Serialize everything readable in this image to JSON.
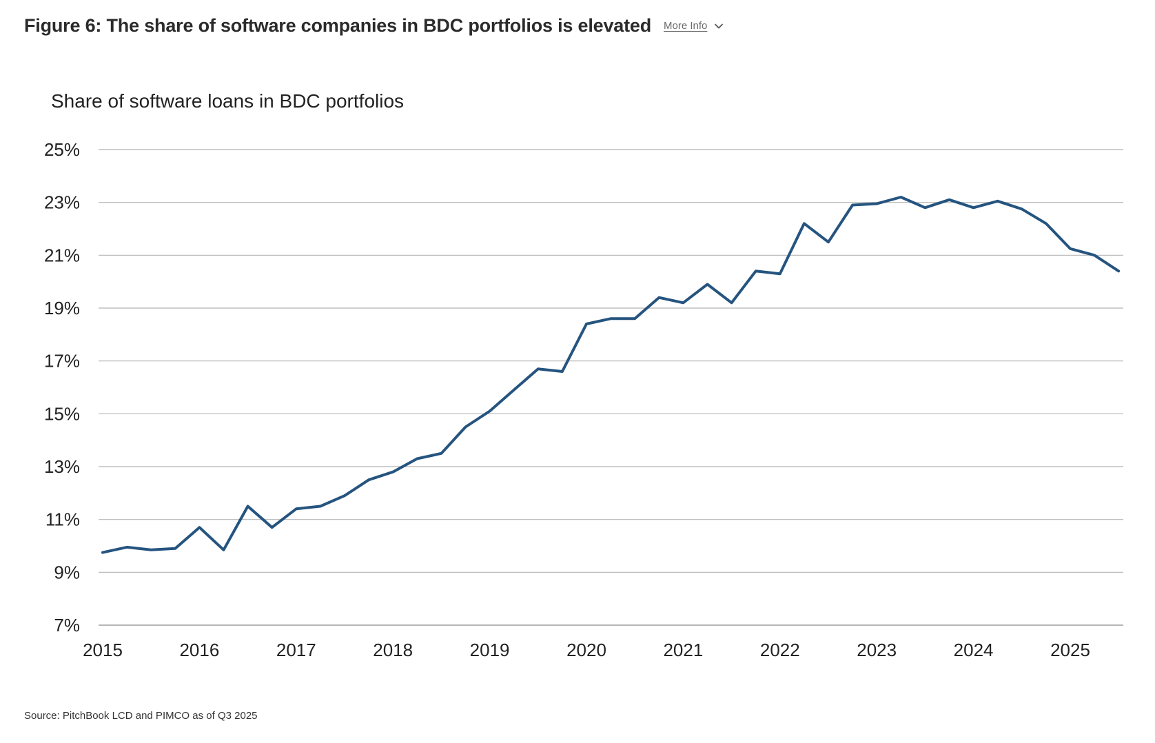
{
  "header": {
    "title": "Figure 6: The share of software companies in BDC portfolios is elevated",
    "more_info_label": "More Info",
    "more_info_icon": "chevron-down-icon"
  },
  "footer": {
    "source": "Source: PitchBook LCD and PIMCO as of Q3 2025"
  },
  "colors": {
    "line": "#25547f",
    "grid": "#b5b5b5",
    "text": "#222222"
  },
  "chart_data": {
    "type": "line",
    "title": "Share of software loans in BDC portfolios",
    "xlabel": "",
    "ylabel": "",
    "grid": true,
    "ylim": [
      7,
      25
    ],
    "yticks": [
      7,
      9,
      11,
      13,
      15,
      17,
      19,
      21,
      23,
      25
    ],
    "ytick_labels": [
      "7%",
      "9%",
      "11%",
      "13%",
      "15%",
      "17%",
      "19%",
      "21%",
      "23%",
      "25%"
    ],
    "xlim": [
      2015,
      2025.5
    ],
    "xticks": [
      2015,
      2016,
      2017,
      2018,
      2019,
      2020,
      2021,
      2022,
      2023,
      2024,
      2025
    ],
    "xtick_labels": [
      "2015",
      "2016",
      "2017",
      "2018",
      "2019",
      "2020",
      "2021",
      "2022",
      "2023",
      "2024",
      "2025"
    ],
    "series": [
      {
        "x": [
          2015,
          2015.25,
          2015.5,
          2015.75,
          2016,
          2016.25,
          2016.5,
          2016.75,
          2017,
          2017.25,
          2017.5,
          2017.75,
          2018,
          2018.25,
          2018.5,
          2018.75,
          2019,
          2019.25,
          2019.5,
          2019.75,
          2020,
          2020.25,
          2020.5,
          2020.75,
          2021,
          2021.25,
          2021.5,
          2021.75,
          2022,
          2022.25,
          2022.5,
          2022.75,
          2023,
          2023.25,
          2023.5,
          2023.75,
          2024,
          2024.25,
          2024.5,
          2024.75,
          2025,
          2025.25,
          2025.5
        ],
        "values": [
          9.75,
          9.95,
          9.85,
          9.9,
          10.7,
          9.85,
          11.5,
          10.7,
          11.4,
          11.5,
          11.9,
          12.5,
          12.8,
          13.3,
          13.5,
          14.5,
          15.1,
          15.9,
          16.7,
          16.6,
          18.4,
          18.6,
          18.6,
          19.4,
          19.2,
          19.9,
          19.2,
          20.4,
          20.3,
          22.2,
          21.5,
          22.9,
          22.95,
          23.2,
          22.8,
          23.1,
          22.8,
          23.05,
          22.75,
          22.2,
          21.25,
          21.0,
          20.4
        ]
      }
    ]
  }
}
